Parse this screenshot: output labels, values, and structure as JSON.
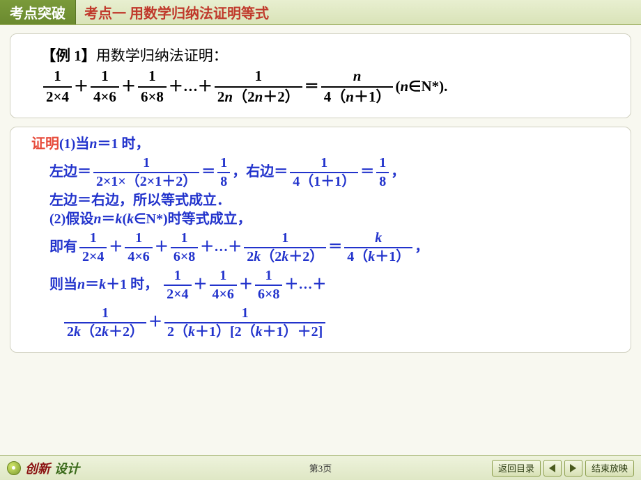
{
  "header": {
    "tab": "考点突破",
    "title": "考点一 用数学归纳法证明等式"
  },
  "problem": {
    "label": "【例 1】",
    "intro": "用数学归纳法证明：",
    "lhs_terms": [
      {
        "num": "1",
        "den": "2×4"
      },
      {
        "num": "1",
        "den": "4×6"
      },
      {
        "num": "1",
        "den": "6×8"
      }
    ],
    "dots": "＋…＋",
    "general_num": "1",
    "general_den_a": "2",
    "general_den_b": "n",
    "general_den_c": "（2",
    "general_den_d": "n",
    "general_den_e": "＋2）",
    "eq": "＝",
    "rhs_num": "n",
    "rhs_den_a": "4（",
    "rhs_den_b": "n",
    "rhs_den_c": "＋1）",
    "cond_a": "(",
    "cond_b": "n",
    "cond_c": "∈N*",
    "cond_d": ")."
  },
  "proof": {
    "label": "证明",
    "p1_a": "(1)当 ",
    "p1_b": "n",
    "p1_c": "＝1 时，",
    "l1_a": "左边＝",
    "l1_num": "1",
    "l1_den": "2×1×（2×1＋2）",
    "l1_eq": "＝",
    "l1_r_num": "1",
    "l1_r_den": "8",
    "l1_comma": "，",
    "r1_a": "右边＝",
    "r1_num": "1",
    "r1_den": "4（1＋1）",
    "r1_eq": "＝",
    "r1_r_num": "1",
    "r1_r_den": "8",
    "r1_comma": "，",
    "l2": "左边＝右边，所以等式成立．",
    "p2_a": "(2)假设 ",
    "p2_b": "n",
    "p2_c": "＝",
    "p2_d": "k",
    "p2_e": "(",
    "p2_f": "k",
    "p2_g": "∈N*)时等式成立，",
    "p3_a": "即有",
    "p3_terms": [
      {
        "num": "1",
        "den": "2×4"
      },
      {
        "num": "1",
        "den": "4×6"
      },
      {
        "num": "1",
        "den": "6×8"
      }
    ],
    "p3_dots": "＋…＋",
    "p3_g_num": "1",
    "p3_g_den_a": "2",
    "p3_g_den_b": "k",
    "p3_g_den_c": "（2",
    "p3_g_den_d": "k",
    "p3_g_den_e": "＋2）",
    "p3_eq": "＝",
    "p3_r_num": "k",
    "p3_r_den_a": "4（",
    "p3_r_den_b": "k",
    "p3_r_den_c": "＋1）",
    "p3_comma": "，",
    "p4_a": "则当 ",
    "p4_b": "n",
    "p4_c": "＝",
    "p4_d": "k",
    "p4_e": "＋1 时，",
    "p4_terms": [
      {
        "num": "1",
        "den": "2×4"
      },
      {
        "num": "1",
        "den": "4×6"
      },
      {
        "num": "1",
        "den": "6×8"
      }
    ],
    "p4_dots": "＋…＋",
    "p5_t1_num": "1",
    "p5_t1_den_a": "2",
    "p5_t1_den_b": "k",
    "p5_t1_den_c": "（2",
    "p5_t1_den_d": "k",
    "p5_t1_den_e": "＋2）",
    "p5_plus": "＋",
    "p5_t2_num": "1",
    "p5_t2_den_a": "2（",
    "p5_t2_den_b": "k",
    "p5_t2_den_c": "＋1）[2（",
    "p5_t2_den_d": "k",
    "p5_t2_den_e": "＋1）＋2]"
  },
  "footer": {
    "logo_a": "创新",
    "logo_b": "设计",
    "page": "第3页",
    "back": "返回目录",
    "end": "结束放映"
  },
  "style": {
    "text_color": "#000000",
    "math_color": "#2233cc",
    "proof_color": "#e74c3c",
    "title_color": "#c0392b",
    "tab_bg": "#6b8a2f",
    "header_bg": "#dfe7c5",
    "box_bg": "#ffffff",
    "box_border": "#d0d0c0",
    "page_bg": "#f8f8f0",
    "fontsize_body": 20,
    "fontsize_header": 20
  }
}
